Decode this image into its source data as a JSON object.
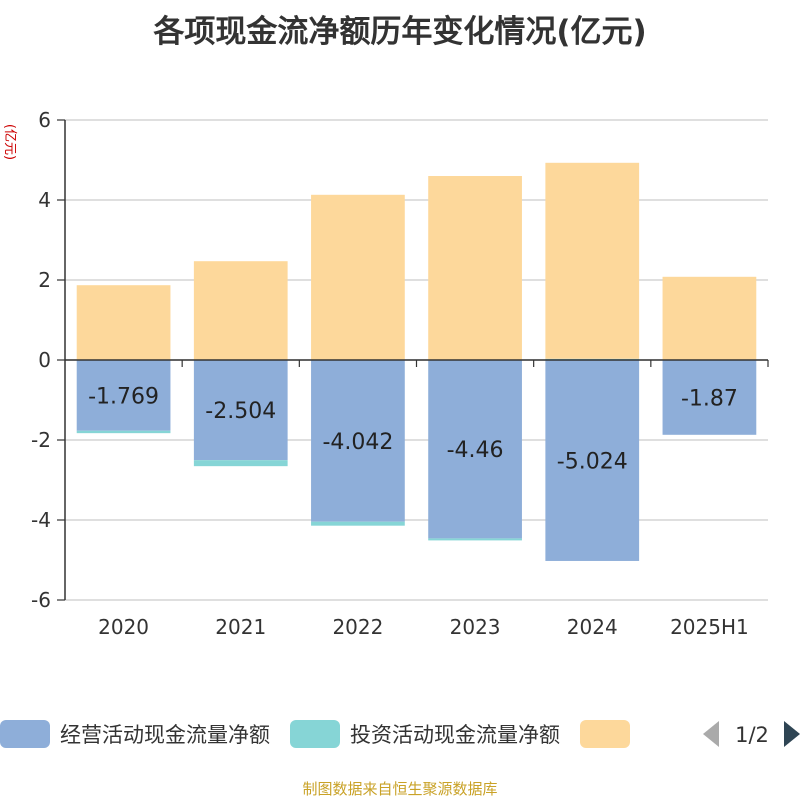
{
  "chart_data": {
    "type": "bar",
    "stacked": true,
    "title": "各项现金流净额历年变化情况(亿元)",
    "ylabel": "(亿元)",
    "xlabel": "",
    "categories": [
      "2020",
      "2021",
      "2022",
      "2023",
      "2024",
      "2025H1"
    ],
    "ylim": [
      -6,
      6
    ],
    "yticks": [
      -6,
      -4,
      -2,
      0,
      2,
      4,
      6
    ],
    "grid": true,
    "legend_position": "bottom",
    "series": [
      {
        "name": "经营活动现金流量净额",
        "color": "#8eaed9",
        "values": [
          -1.769,
          -2.504,
          -4.042,
          -4.46,
          -5.024,
          -1.87
        ],
        "labels": [
          "-1.769",
          "-2.504",
          "-4.042",
          "-4.46",
          "-5.024",
          "-1.87"
        ]
      },
      {
        "name": "投资活动现金流量净额",
        "color": "#86d5d6",
        "values": [
          -0.06,
          -0.15,
          -0.1,
          -0.05,
          0.03,
          0.01
        ],
        "labels": [
          "",
          "",
          "",
          "",
          "",
          ""
        ]
      },
      {
        "name": "",
        "color": "#fdd89b",
        "values": [
          1.87,
          2.47,
          4.13,
          4.6,
          4.9,
          2.07
        ],
        "labels": [
          "",
          "",
          "",
          "",
          "",
          ""
        ]
      }
    ]
  },
  "legend": {
    "page_indicator": "1/2"
  },
  "source": "制图数据来自恒生聚源数据库"
}
